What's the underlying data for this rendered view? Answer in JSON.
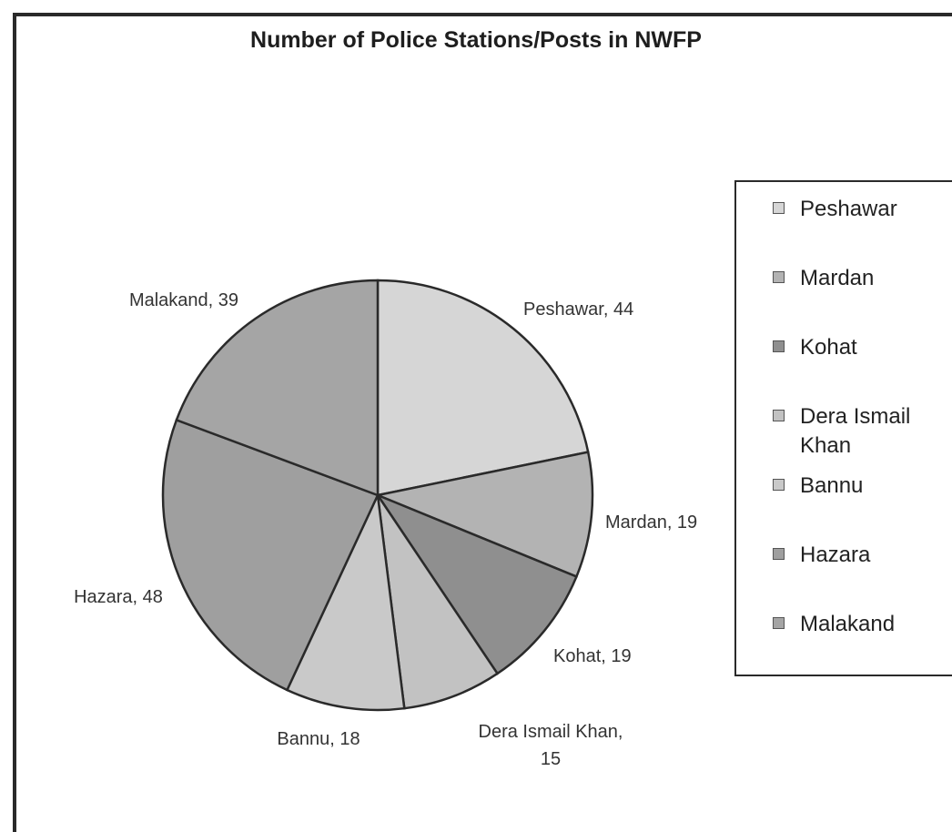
{
  "chart_data": {
    "type": "pie",
    "title": "Number of Police Stations/Posts in NWFP",
    "slices": [
      {
        "label": "Peshawar",
        "value": 44,
        "data_label": "Peshawar, 44",
        "color": "#d6d6d6"
      },
      {
        "label": "Mardan",
        "value": 19,
        "data_label": "Mardan, 19",
        "color": "#b3b3b3"
      },
      {
        "label": "Kohat",
        "value": 19,
        "data_label": "Kohat, 19",
        "color": "#8f8f8f"
      },
      {
        "label": "Dera Ismail Khan",
        "value": 15,
        "data_label": "Dera Ismail Khan, 15",
        "color": "#c2c2c2"
      },
      {
        "label": "Bannu",
        "value": 18,
        "data_label": "Bannu, 18",
        "color": "#c9c9c9"
      },
      {
        "label": "Hazara",
        "value": 48,
        "data_label": "Hazara, 48",
        "color": "#9f9f9f"
      },
      {
        "label": "Malakand",
        "value": 39,
        "data_label": "Malakand, 39",
        "color": "#a5a5a5"
      }
    ],
    "legend": {
      "placement": "right",
      "entries": [
        "Peshawar",
        "Mardan",
        "Kohat",
        "Dera Ismail Khan",
        "Bannu",
        "Hazara",
        "Malakand"
      ]
    }
  }
}
